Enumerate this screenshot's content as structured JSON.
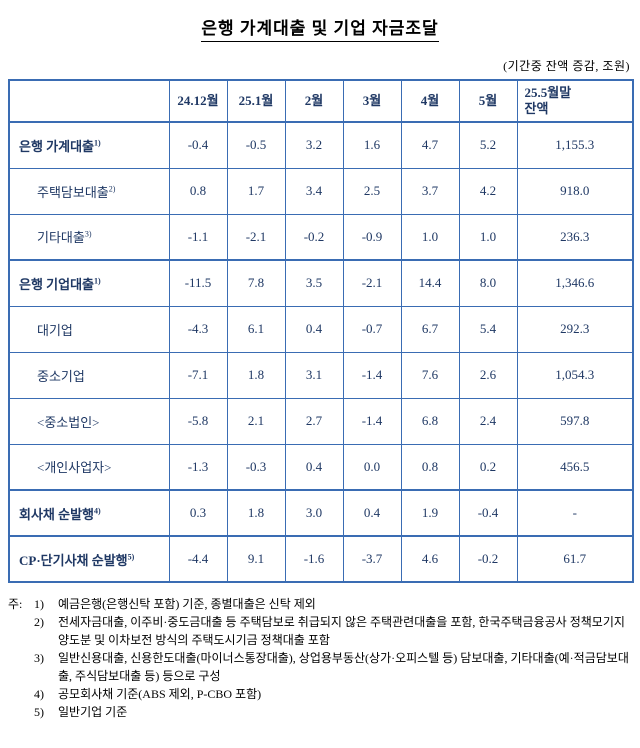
{
  "colors": {
    "border": "#3a6cb3",
    "table_text": "#1f3864"
  },
  "title": "은행 가계대출 및 기업 자금조달",
  "subtitle": "(기간중 잔액 증감, 조원)",
  "table": {
    "columns": [
      "24.12월",
      "25.1월",
      "2월",
      "3월",
      "4월",
      "5월",
      "25.5월말\n잔액"
    ],
    "rows": [
      {
        "label": "은행 가계대출",
        "sup": "1)",
        "section": true,
        "values": [
          "-0.4",
          "-0.5",
          "3.2",
          "1.6",
          "4.7",
          "5.2",
          "1,155.3"
        ]
      },
      {
        "label": "주택담보대출",
        "sup": "2)",
        "section": false,
        "values": [
          "0.8",
          "1.7",
          "3.4",
          "2.5",
          "3.7",
          "4.2",
          "918.0"
        ]
      },
      {
        "label": "기타대출",
        "sup": "3)",
        "section": false,
        "values": [
          "-1.1",
          "-2.1",
          "-0.2",
          "-0.9",
          "1.0",
          "1.0",
          "236.3"
        ]
      },
      {
        "label": "은행 기업대출",
        "sup": "1)",
        "section": true,
        "values": [
          "-11.5",
          "7.8",
          "3.5",
          "-2.1",
          "14.4",
          "8.0",
          "1,346.6"
        ]
      },
      {
        "label": "대기업",
        "sup": "",
        "section": false,
        "values": [
          "-4.3",
          "6.1",
          "0.4",
          "-0.7",
          "6.7",
          "5.4",
          "292.3"
        ]
      },
      {
        "label": "중소기업",
        "sup": "",
        "section": false,
        "values": [
          "-7.1",
          "1.8",
          "3.1",
          "-1.4",
          "7.6",
          "2.6",
          "1,054.3"
        ]
      },
      {
        "label": "<중소법인>",
        "sup": "",
        "section": false,
        "values": [
          "-5.8",
          "2.1",
          "2.7",
          "-1.4",
          "6.8",
          "2.4",
          "597.8"
        ]
      },
      {
        "label": "<개인사업자>",
        "sup": "",
        "section": false,
        "values": [
          "-1.3",
          "-0.3",
          "0.4",
          "0.0",
          "0.8",
          "0.2",
          "456.5"
        ]
      },
      {
        "label": "회사채 순발행",
        "sup": "4)",
        "section": true,
        "values": [
          "0.3",
          "1.8",
          "3.0",
          "0.4",
          "1.9",
          "-0.4",
          "-"
        ]
      },
      {
        "label": "CP·단기사채 순발행",
        "sup": "5)",
        "section": true,
        "values": [
          "-4.4",
          "9.1",
          "-1.6",
          "-3.7",
          "4.6",
          "-0.2",
          "61.7"
        ]
      }
    ]
  },
  "notes": {
    "prefix": "주:",
    "items": [
      {
        "num": "1)",
        "text": "예금은행(은행신탁 포함) 기준, 종별대출은 신탁 제외"
      },
      {
        "num": "2)",
        "text": "전세자금대출, 이주비·중도금대출 등 주택담보로 취급되지 않은 주택관련대출을 포함, 한국주택금융공사 정책모기지 양도분 및 이차보전 방식의 주택도시기금 정책대출 포함"
      },
      {
        "num": "3)",
        "text": "일반신용대출, 신용한도대출(마이너스통장대출), 상업용부동산(상가·오피스텔 등) 담보대출, 기타대출(예·적금담보대출, 주식담보대출 등) 등으로 구성"
      },
      {
        "num": "4)",
        "text": "공모회사채 기준(ABS 제외, P-CBO 포함)"
      },
      {
        "num": "5)",
        "text": "일반기업 기준"
      }
    ]
  }
}
